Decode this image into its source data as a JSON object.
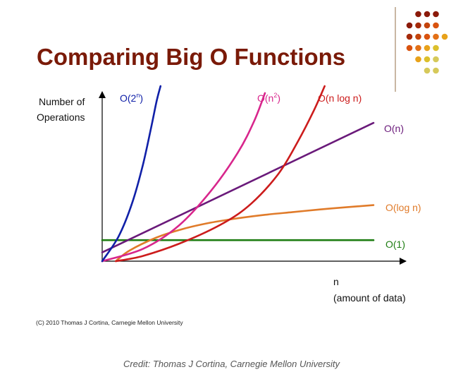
{
  "slide": {
    "title": "Comparing Big O Functions",
    "copyright": "(C) 2010 Thomas J Cortina, Carnegie Mellon University",
    "credit": "Credit: Thomas J Cortina, Carnegie Mellon University"
  },
  "decoration": {
    "dot_rows": [
      [
        "#8b1a0a",
        "#8b1a0a",
        "#8b1a0a"
      ],
      [
        "#8b1a0a",
        "#a52a0a",
        "#c4440c",
        "#d9530f"
      ],
      [
        "#a52a0a",
        "#c4440c",
        "#d9530f",
        "#e37016",
        "#e8a21a"
      ],
      [
        "#d9530f",
        "#e37016",
        "#e8a21a",
        "#dcc02c"
      ],
      [
        "#e8a21a",
        "#dcc02c",
        "#d6c95a"
      ],
      [
        "#d6c95a",
        "#d6c95a"
      ]
    ]
  },
  "chart_data": {
    "type": "line",
    "ylabel": [
      "Number of",
      "Operations"
    ],
    "xlabel": [
      "n",
      "(amount of data)"
    ],
    "x_range": [
      0,
      100
    ],
    "y_range": [
      0,
      100
    ],
    "series": [
      {
        "name": "O(1)",
        "label_base": "O(1)",
        "label_sup": "",
        "color": "#1e7d12",
        "x": [
          0,
          100
        ],
        "y": [
          12,
          12
        ]
      },
      {
        "name": "O(log n)",
        "label_base": "O(log n)",
        "label_sup": "",
        "color": "#e07b2a",
        "x": [
          5,
          10,
          20,
          30,
          40,
          50,
          60,
          70,
          80,
          90,
          100
        ],
        "y": [
          0,
          6,
          13.5,
          18.5,
          22,
          24.5,
          26.5,
          28,
          29.5,
          30.8,
          32
        ]
      },
      {
        "name": "O(n)",
        "label_base": "O(n)",
        "label_sup": "",
        "color": "#6a1a7a",
        "x": [
          0,
          100
        ],
        "y": [
          5,
          79
        ]
      },
      {
        "name": "O(n log n)",
        "label_base": "O(n log n)",
        "label_sup": "",
        "color": "#cc1c1c",
        "x": [
          5,
          15,
          30,
          45,
          55,
          65,
          72,
          78,
          82
        ],
        "y": [
          0,
          3,
          11,
          22,
          33,
          50,
          68,
          86,
          100
        ]
      },
      {
        "name": "O(n²)",
        "label_base": "O(n",
        "label_sup": "2",
        "color": "#d8268c",
        "x": [
          0,
          15,
          28,
          40,
          50,
          56,
          60
        ],
        "y": [
          0,
          7,
          20,
          40,
          62,
          80,
          96
        ]
      },
      {
        "name": "O(2ⁿ)",
        "label_base": "O(2",
        "label_sup": "n",
        "color": "#1020a8",
        "x": [
          0,
          6,
          11,
          15,
          18,
          20,
          21.5
        ],
        "y": [
          0,
          14,
          33,
          55,
          76,
          91,
          100
        ]
      }
    ]
  }
}
